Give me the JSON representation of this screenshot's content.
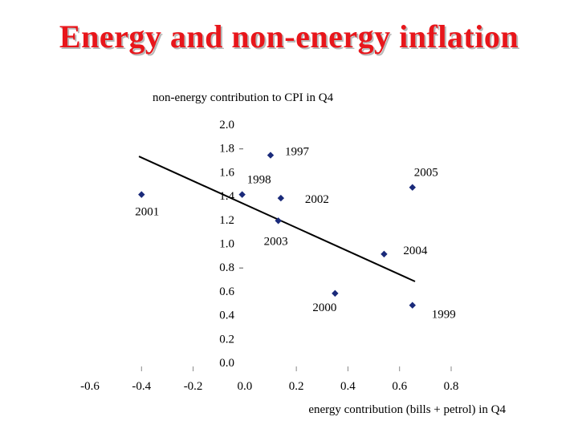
{
  "slide": {
    "title": "Energy and non-energy inflation"
  },
  "chart_data": {
    "type": "scatter",
    "title": "Energy and non-energy inflation",
    "ylabel": "non-energy contribution to CPI in Q4",
    "xlabel": "energy contribution (bills + petrol) in Q4",
    "xlim": [
      -0.6,
      0.8
    ],
    "ylim": [
      0.0,
      2.0
    ],
    "x_ticks": [
      "-0.6",
      "-0.4",
      "-0.2",
      "0.0",
      "0.2",
      "0.4",
      "0.6",
      "0.8"
    ],
    "y_ticks": [
      "0.0",
      "0.2",
      "0.4",
      "0.6",
      "0.8",
      "1.0",
      "1.2",
      "1.4",
      "1.6",
      "1.8",
      "2.0"
    ],
    "grid": false,
    "marker_color": "#1a2a7a",
    "line_color": "#000000",
    "points": [
      {
        "label": "1997",
        "x": 0.1,
        "y": 1.74
      },
      {
        "label": "1998",
        "x": -0.01,
        "y": 1.41
      },
      {
        "label": "1999",
        "x": 0.65,
        "y": 0.48
      },
      {
        "label": "2000",
        "x": 0.35,
        "y": 0.58
      },
      {
        "label": "2001",
        "x": -0.4,
        "y": 1.41
      },
      {
        "label": "2002",
        "x": 0.14,
        "y": 1.38
      },
      {
        "label": "2003",
        "x": 0.13,
        "y": 1.19
      },
      {
        "label": "2004",
        "x": 0.54,
        "y": 0.91
      },
      {
        "label": "2005",
        "x": 0.65,
        "y": 1.47
      }
    ],
    "trendline": {
      "x": [
        -0.41,
        0.66
      ],
      "y": [
        1.73,
        0.68
      ]
    }
  }
}
